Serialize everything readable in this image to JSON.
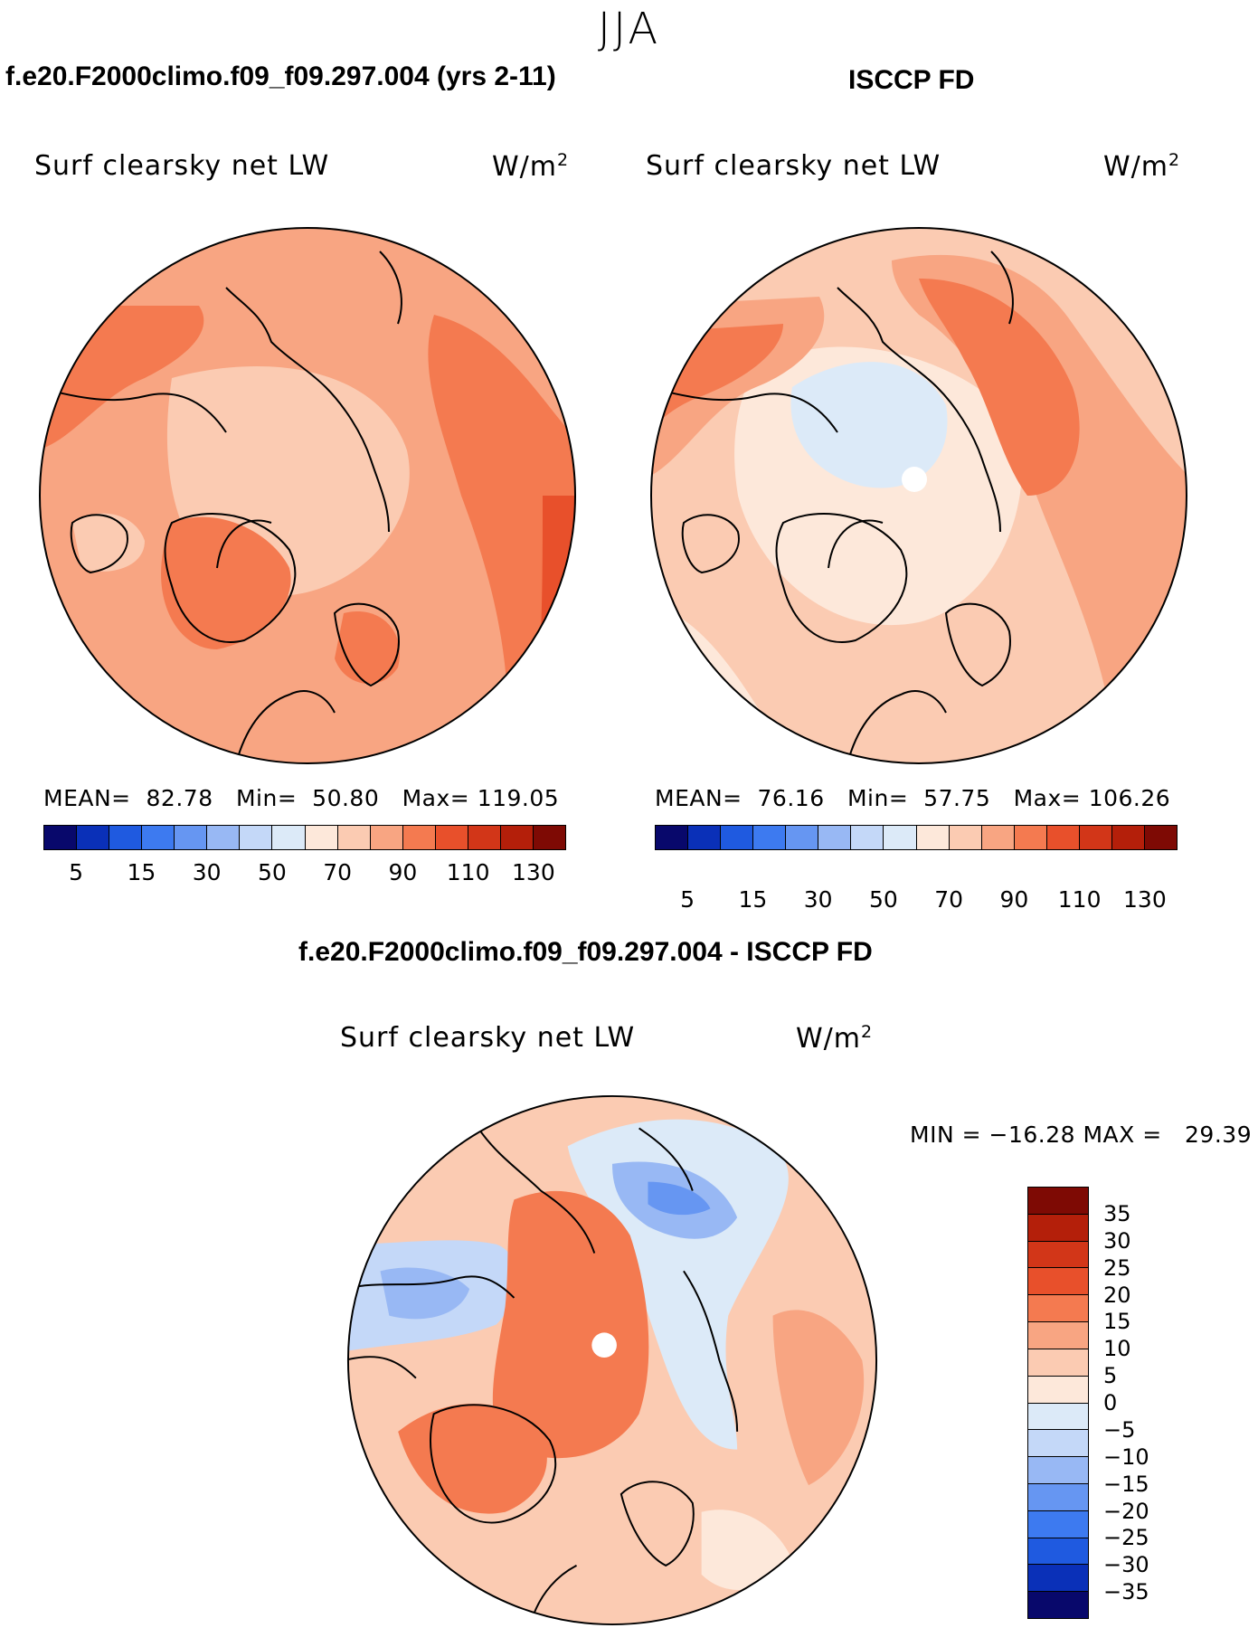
{
  "season": "JJA",
  "panels": [
    {
      "id": "model",
      "title": "f.e20.F2000climo.f09_f09.297.004 (yrs 2-11)",
      "field": "Surf clearsky net LW",
      "units_base": "W/m",
      "units_exp": "2",
      "stats_label_mean": "MEAN=",
      "mean": "82.78",
      "stats_label_min": "Min=",
      "min": "50.80",
      "stats_label_max": "Max=",
      "max": "119.05"
    },
    {
      "id": "obs",
      "title": "ISCCP FD",
      "field": "Surf clearsky net LW",
      "units_base": "W/m",
      "units_exp": "2",
      "stats_label_mean": "MEAN=",
      "mean": "76.16",
      "stats_label_min": "Min=",
      "min": "57.75",
      "stats_label_max": "Max=",
      "max": "106.26"
    },
    {
      "id": "diff",
      "title": "f.e20.F2000climo.f09_f09.297.004 - ISCCP FD",
      "field": "Surf clearsky net LW",
      "units_base": "W/m",
      "units_exp": "2",
      "stats_label_min": "MIN =",
      "min": "−16.28",
      "stats_label_max": "MAX =",
      "max": "29.39"
    }
  ],
  "abs_colorbar": {
    "colors": [
      "#08086b",
      "#0a30b8",
      "#1f5ae0",
      "#3d7af0",
      "#6696f2",
      "#98b8f4",
      "#c4d8f8",
      "#dceaf8",
      "#fde8da",
      "#fbcbb2",
      "#f8a582",
      "#f47a50",
      "#e8502b",
      "#d23618",
      "#b41f0a",
      "#7e0a04"
    ],
    "tick_labels": [
      "5",
      "15",
      "30",
      "50",
      "70",
      "90",
      "110",
      "130"
    ]
  },
  "diff_colorbar": {
    "colors": [
      "#08086b",
      "#0a30b8",
      "#1f5ae0",
      "#3d7af0",
      "#6696f2",
      "#98b8f4",
      "#c4d8f8",
      "#dceaf8",
      "#fde8da",
      "#fbcbb2",
      "#f8a582",
      "#f47a50",
      "#e8502b",
      "#d23618",
      "#b41f0a",
      "#7e0a04"
    ],
    "tick_labels": [
      "35",
      "30",
      "25",
      "20",
      "15",
      "10",
      "5",
      "0",
      "−5",
      "−10",
      "−15",
      "−20",
      "−25",
      "−30",
      "−35"
    ]
  },
  "colors": {
    "model_base": "#f8a582",
    "model_mid": "#f47a50",
    "model_hi": "#e8502b",
    "model_low": "#fbcbb2",
    "obs_base": "#fbcbb2",
    "obs_low": "#fde8da",
    "obs_blue": "#dceaf8",
    "obs_mid": "#f8a582",
    "obs_hi": "#f47a50",
    "diff_base": "#fbcbb2",
    "diff_warm": "#f47a50",
    "diff_mid": "#f8a582",
    "diff_pale": "#fde8da",
    "diff_blue1": "#dceaf8",
    "diff_blue2": "#c4d8f8",
    "diff_blue3": "#98b8f4",
    "diff_blue4": "#6696f2"
  }
}
